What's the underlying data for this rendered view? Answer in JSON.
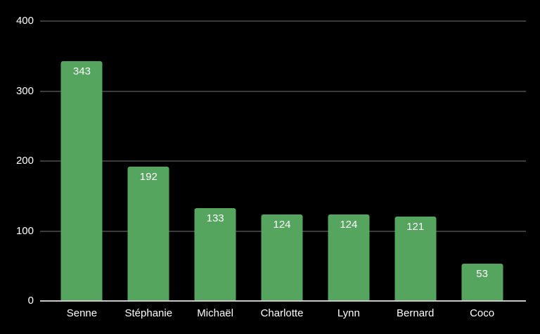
{
  "chart_data": {
    "type": "bar",
    "title": "",
    "xlabel": "",
    "ylabel": "",
    "categories": [
      "Senne",
      "Stéphanie",
      "Michaël",
      "Charlotte",
      "Lynn",
      "Bernard",
      "Coco"
    ],
    "values": [
      343,
      192,
      133,
      124,
      124,
      121,
      53
    ],
    "ylim": [
      0,
      400
    ],
    "yticks": [
      0,
      100,
      200,
      300,
      400
    ],
    "grid": true,
    "legend": false,
    "colors": {
      "background": "#000000",
      "bar": "#55a55e",
      "bar_label": "#ffffff",
      "axis_label": "#ffffff",
      "gridline": "#3b3b3d",
      "baseline": "#c8c8c8"
    }
  }
}
